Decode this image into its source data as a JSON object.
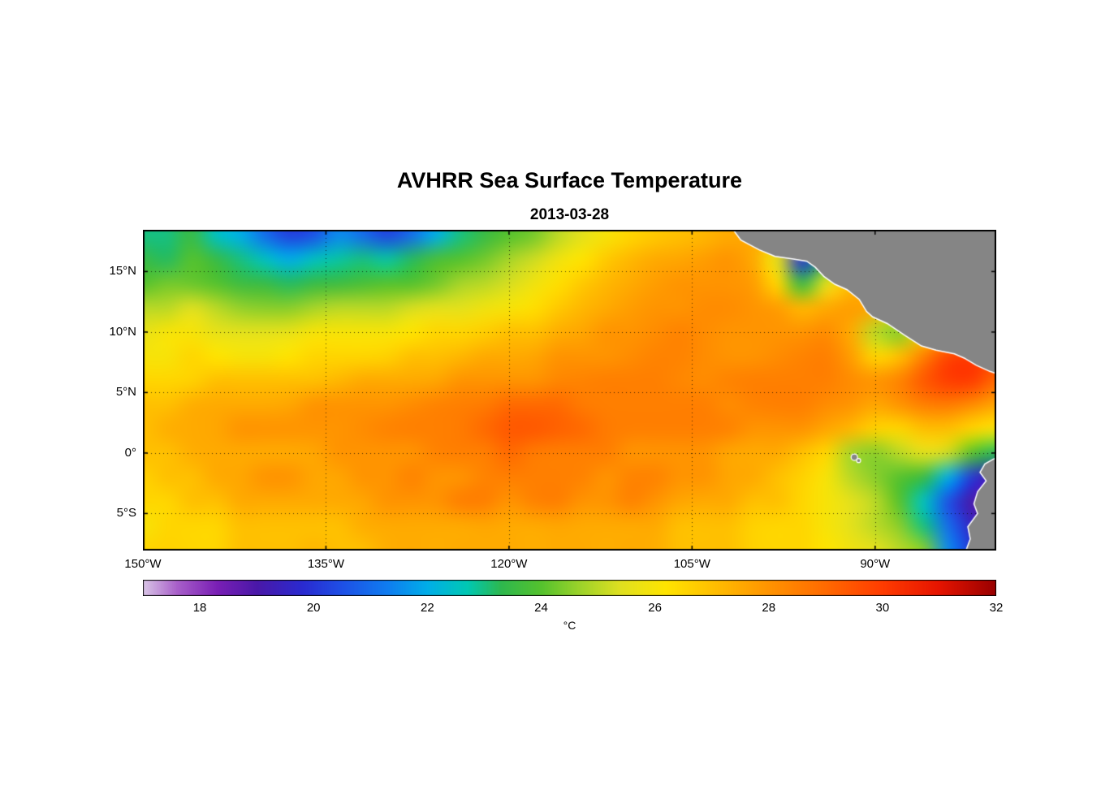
{
  "chart_data": {
    "type": "heatmap",
    "title": "AVHRR Sea Surface Temperature",
    "subtitle": "2013-03-28",
    "xlabel": "",
    "ylabel": "",
    "grid_lines": "dotted",
    "lon_range": [
      -150,
      -80.07
    ],
    "lat_range": [
      -8.06,
      18.45
    ],
    "xtick_values": [
      -150,
      -135,
      -120,
      -105,
      -90
    ],
    "xtick_labels": [
      "150°W",
      "135°W",
      "120°W",
      "105°W",
      "90°W"
    ],
    "ytick_values": [
      15,
      10,
      5,
      0,
      -5
    ],
    "ytick_labels": [
      "15°N",
      "10°N",
      "5°N",
      "0°",
      "5°S"
    ],
    "land_color": "#858585",
    "nodata_color": "#ffffff",
    "coast_halo_color": "#ffffff",
    "colorbar": {
      "min": 17,
      "max": 32,
      "tick_values": [
        18,
        20,
        22,
        24,
        26,
        28,
        30,
        32
      ],
      "tick_labels": [
        "18",
        "20",
        "22",
        "24",
        "26",
        "28",
        "30",
        "32"
      ],
      "label": "°C",
      "stops": [
        [
          17.0,
          "#d9c4e6"
        ],
        [
          17.6,
          "#a85fc9"
        ],
        [
          18.3,
          "#7a1fb5"
        ],
        [
          19.0,
          "#4a18a8"
        ],
        [
          19.8,
          "#2a2ad0"
        ],
        [
          20.5,
          "#1e50e6"
        ],
        [
          21.3,
          "#0f7df0"
        ],
        [
          22.0,
          "#00aee8"
        ],
        [
          22.7,
          "#00c8b4"
        ],
        [
          23.3,
          "#2eb84e"
        ],
        [
          24.0,
          "#55c22e"
        ],
        [
          24.7,
          "#9ed32a"
        ],
        [
          25.4,
          "#e0e020"
        ],
        [
          26.2,
          "#ffe400"
        ],
        [
          27.0,
          "#ffc000"
        ],
        [
          28.0,
          "#ff9400"
        ],
        [
          29.0,
          "#ff6a00"
        ],
        [
          30.0,
          "#ff3c00"
        ],
        [
          31.0,
          "#e61400"
        ],
        [
          32.0,
          "#990000"
        ]
      ]
    },
    "grid": {
      "lons": [
        -150,
        -148,
        -146,
        -144,
        -142,
        -140,
        -138,
        -136,
        -134,
        -132,
        -130,
        -128,
        -126,
        -124,
        -122,
        -120,
        -118,
        -116,
        -114,
        -112,
        -110,
        -108,
        -106,
        -104,
        -102,
        -100,
        -98,
        -96,
        -94,
        -92,
        -90,
        -88,
        -86,
        -84,
        -82,
        -80
      ],
      "lats": [
        18,
        16,
        14,
        12,
        10,
        8,
        6,
        4,
        2,
        0,
        -2,
        -4,
        -6,
        -8
      ],
      "sst_c": [
        [
          23.0,
          23.0,
          23.5,
          22.5,
          22.0,
          21.0,
          20.2,
          20.5,
          21.5,
          21.0,
          20.3,
          21.0,
          22.0,
          23.0,
          23.5,
          24.0,
          24.3,
          25.0,
          25.5,
          26.0,
          26.5,
          26.8,
          27.0,
          27.2,
          27.5,
          27.5,
          27.0,
          26.0,
          27.0,
          27.0,
          27.0,
          27.0,
          27.0,
          27.0,
          26.5,
          26.5
        ],
        [
          23.5,
          23.2,
          24.0,
          23.5,
          23.0,
          22.5,
          22.0,
          22.5,
          22.8,
          23.0,
          22.8,
          23.2,
          23.8,
          24.0,
          24.3,
          24.8,
          25.2,
          25.8,
          26.2,
          26.8,
          27.2,
          27.5,
          27.6,
          27.8,
          28.0,
          27.5,
          25.5,
          20.0,
          23.5,
          26.5,
          27.0,
          27.2,
          27.2,
          27.0,
          26.8,
          26.5
        ],
        [
          24.0,
          24.3,
          24.2,
          24.0,
          23.6,
          23.5,
          23.2,
          23.5,
          23.6,
          23.8,
          24.0,
          24.0,
          24.3,
          24.8,
          25.0,
          25.3,
          25.8,
          26.3,
          26.8,
          27.2,
          27.5,
          27.8,
          28.0,
          28.0,
          28.0,
          27.8,
          26.5,
          23.5,
          25.5,
          27.0,
          27.5,
          27.5,
          27.3,
          27.2,
          27.0,
          27.0
        ],
        [
          25.0,
          25.0,
          25.4,
          25.0,
          24.6,
          24.5,
          24.5,
          24.8,
          25.0,
          25.0,
          25.0,
          25.3,
          25.5,
          25.5,
          25.8,
          26.0,
          26.3,
          26.8,
          27.2,
          27.5,
          27.8,
          28.0,
          28.0,
          28.2,
          28.2,
          28.0,
          27.8,
          27.2,
          27.5,
          27.8,
          27.5,
          26.5,
          27.0,
          27.2,
          27.2,
          27.0
        ],
        [
          25.6,
          26.0,
          26.0,
          25.6,
          25.5,
          25.5,
          25.6,
          26.0,
          26.0,
          26.0,
          26.0,
          26.2,
          26.5,
          26.5,
          26.7,
          27.0,
          27.0,
          27.4,
          27.6,
          28.0,
          28.0,
          28.2,
          28.4,
          28.2,
          28.0,
          28.0,
          28.0,
          28.0,
          28.2,
          27.5,
          25.0,
          24.5,
          26.5,
          27.5,
          28.0,
          28.2
        ],
        [
          26.0,
          26.0,
          26.5,
          26.2,
          26.0,
          26.0,
          26.2,
          26.5,
          26.5,
          26.5,
          26.6,
          27.0,
          27.0,
          27.2,
          27.5,
          27.5,
          27.6,
          28.0,
          28.0,
          28.0,
          28.2,
          28.4,
          28.4,
          28.2,
          28.0,
          28.0,
          28.2,
          28.4,
          28.5,
          27.8,
          26.5,
          27.0,
          28.5,
          29.8,
          30.0,
          29.5
        ],
        [
          26.5,
          26.5,
          26.6,
          27.0,
          27.0,
          27.0,
          27.0,
          27.0,
          27.2,
          27.5,
          27.5,
          27.5,
          27.6,
          28.0,
          28.0,
          28.0,
          28.0,
          28.3,
          28.4,
          28.5,
          28.5,
          28.5,
          28.3,
          28.2,
          28.4,
          28.5,
          28.5,
          28.5,
          28.5,
          28.2,
          28.0,
          28.4,
          29.4,
          30.0,
          30.0,
          29.0
        ],
        [
          27.0,
          27.0,
          27.4,
          27.5,
          27.5,
          27.5,
          27.6,
          28.0,
          28.0,
          28.0,
          28.0,
          28.2,
          28.4,
          28.5,
          28.6,
          29.0,
          29.0,
          29.0,
          28.6,
          28.5,
          28.5,
          28.5,
          28.5,
          28.5,
          28.2,
          28.4,
          28.5,
          28.5,
          28.2,
          28.0,
          27.6,
          28.0,
          28.5,
          28.6,
          28.2,
          27.6
        ],
        [
          27.0,
          27.4,
          27.5,
          27.6,
          28.0,
          28.0,
          28.0,
          28.0,
          28.0,
          28.2,
          28.4,
          28.5,
          28.5,
          28.6,
          29.0,
          29.4,
          29.4,
          29.2,
          29.0,
          28.6,
          28.5,
          28.5,
          28.5,
          28.5,
          28.4,
          28.0,
          28.0,
          28.0,
          27.6,
          27.2,
          26.6,
          26.5,
          27.0,
          27.0,
          26.5,
          26.0
        ],
        [
          27.0,
          27.0,
          27.4,
          27.5,
          27.5,
          27.5,
          27.5,
          27.6,
          28.0,
          28.0,
          28.0,
          28.0,
          28.4,
          28.5,
          28.5,
          29.0,
          28.6,
          28.5,
          28.5,
          28.5,
          28.0,
          28.0,
          28.0,
          28.0,
          27.6,
          27.5,
          27.5,
          27.0,
          26.5,
          24.8,
          24.5,
          25.0,
          25.5,
          25.2,
          24.0,
          23.2
        ],
        [
          26.6,
          27.0,
          27.0,
          27.5,
          27.6,
          28.0,
          28.0,
          27.6,
          27.6,
          28.0,
          28.0,
          28.4,
          28.0,
          28.0,
          28.4,
          28.5,
          28.5,
          28.5,
          28.4,
          28.0,
          28.4,
          28.4,
          28.0,
          28.0,
          27.6,
          27.5,
          27.0,
          26.6,
          26.0,
          25.0,
          24.5,
          24.0,
          23.5,
          22.0,
          20.0,
          19.0
        ],
        [
          26.5,
          26.5,
          27.0,
          27.0,
          27.5,
          27.5,
          27.5,
          27.5,
          27.5,
          27.6,
          28.0,
          28.0,
          28.0,
          28.5,
          28.5,
          28.0,
          28.4,
          28.5,
          28.0,
          28.0,
          28.4,
          28.0,
          27.6,
          27.5,
          27.5,
          27.0,
          27.0,
          26.5,
          26.0,
          25.5,
          25.0,
          24.0,
          22.5,
          20.5,
          19.0,
          18.0
        ],
        [
          26.0,
          26.5,
          26.5,
          26.5,
          27.0,
          27.0,
          27.0,
          27.0,
          27.0,
          27.4,
          27.5,
          27.5,
          27.5,
          27.5,
          27.6,
          27.5,
          27.5,
          27.6,
          27.5,
          27.5,
          27.5,
          27.5,
          27.0,
          27.0,
          27.0,
          26.6,
          26.5,
          26.5,
          26.0,
          25.5,
          25.0,
          24.5,
          23.0,
          21.0,
          19.5,
          18.5
        ],
        [
          26.5,
          26.6,
          26.5,
          26.5,
          27.0,
          27.0,
          27.0,
          27.2,
          27.0,
          27.0,
          27.4,
          27.5,
          27.4,
          27.5,
          27.5,
          27.5,
          27.4,
          27.5,
          27.5,
          27.4,
          27.5,
          27.4,
          27.0,
          27.0,
          27.0,
          26.6,
          26.5,
          26.5,
          26.2,
          25.8,
          25.5,
          25.0,
          24.5,
          21.5,
          20.0,
          19.0
        ]
      ]
    },
    "land_polygons": {
      "mexico_central_america": [
        [
          -102.4,
          19.5
        ],
        [
          -101.0,
          17.6
        ],
        [
          -99.5,
          16.8
        ],
        [
          -98.2,
          16.25
        ],
        [
          -96.8,
          16.05
        ],
        [
          -95.6,
          15.85
        ],
        [
          -94.9,
          15.35
        ],
        [
          -94.2,
          14.6
        ],
        [
          -93.3,
          13.95
        ],
        [
          -92.3,
          13.5
        ],
        [
          -91.3,
          12.7
        ],
        [
          -90.7,
          11.7
        ],
        [
          -90.2,
          11.25
        ],
        [
          -89.0,
          10.7
        ],
        [
          -87.6,
          9.75
        ],
        [
          -86.2,
          8.85
        ],
        [
          -85.0,
          8.5
        ],
        [
          -83.5,
          8.2
        ],
        [
          -82.7,
          7.85
        ],
        [
          -81.7,
          7.25
        ],
        [
          -80.6,
          6.75
        ],
        [
          -79.0,
          6.2
        ],
        [
          -79.0,
          19.5
        ]
      ],
      "caribbean_nodata": [
        [
          -90.2,
          19.5
        ],
        [
          -88.3,
          17.5
        ],
        [
          -86.5,
          16.4
        ],
        [
          -84.5,
          16.05
        ],
        [
          -79.0,
          16.0
        ],
        [
          -79.0,
          19.5
        ]
      ],
      "south_america": [
        [
          -79.0,
          -0.05
        ],
        [
          -80.3,
          -0.5
        ],
        [
          -81.0,
          -0.9
        ],
        [
          -81.4,
          -1.6
        ],
        [
          -80.9,
          -2.3
        ],
        [
          -81.6,
          -3.2
        ],
        [
          -81.9,
          -4.2
        ],
        [
          -81.6,
          -5.0
        ],
        [
          -82.4,
          -6.1
        ],
        [
          -82.2,
          -7.1
        ],
        [
          -82.9,
          -9.0
        ],
        [
          -79.0,
          -9.0
        ]
      ]
    },
    "islands": [
      {
        "name": "galapagos",
        "lon": -91.7,
        "lat": -0.35,
        "r": 4
      },
      {
        "name": "galapagos-small",
        "lon": -91.35,
        "lat": -0.62,
        "r": 2.5
      }
    ]
  }
}
